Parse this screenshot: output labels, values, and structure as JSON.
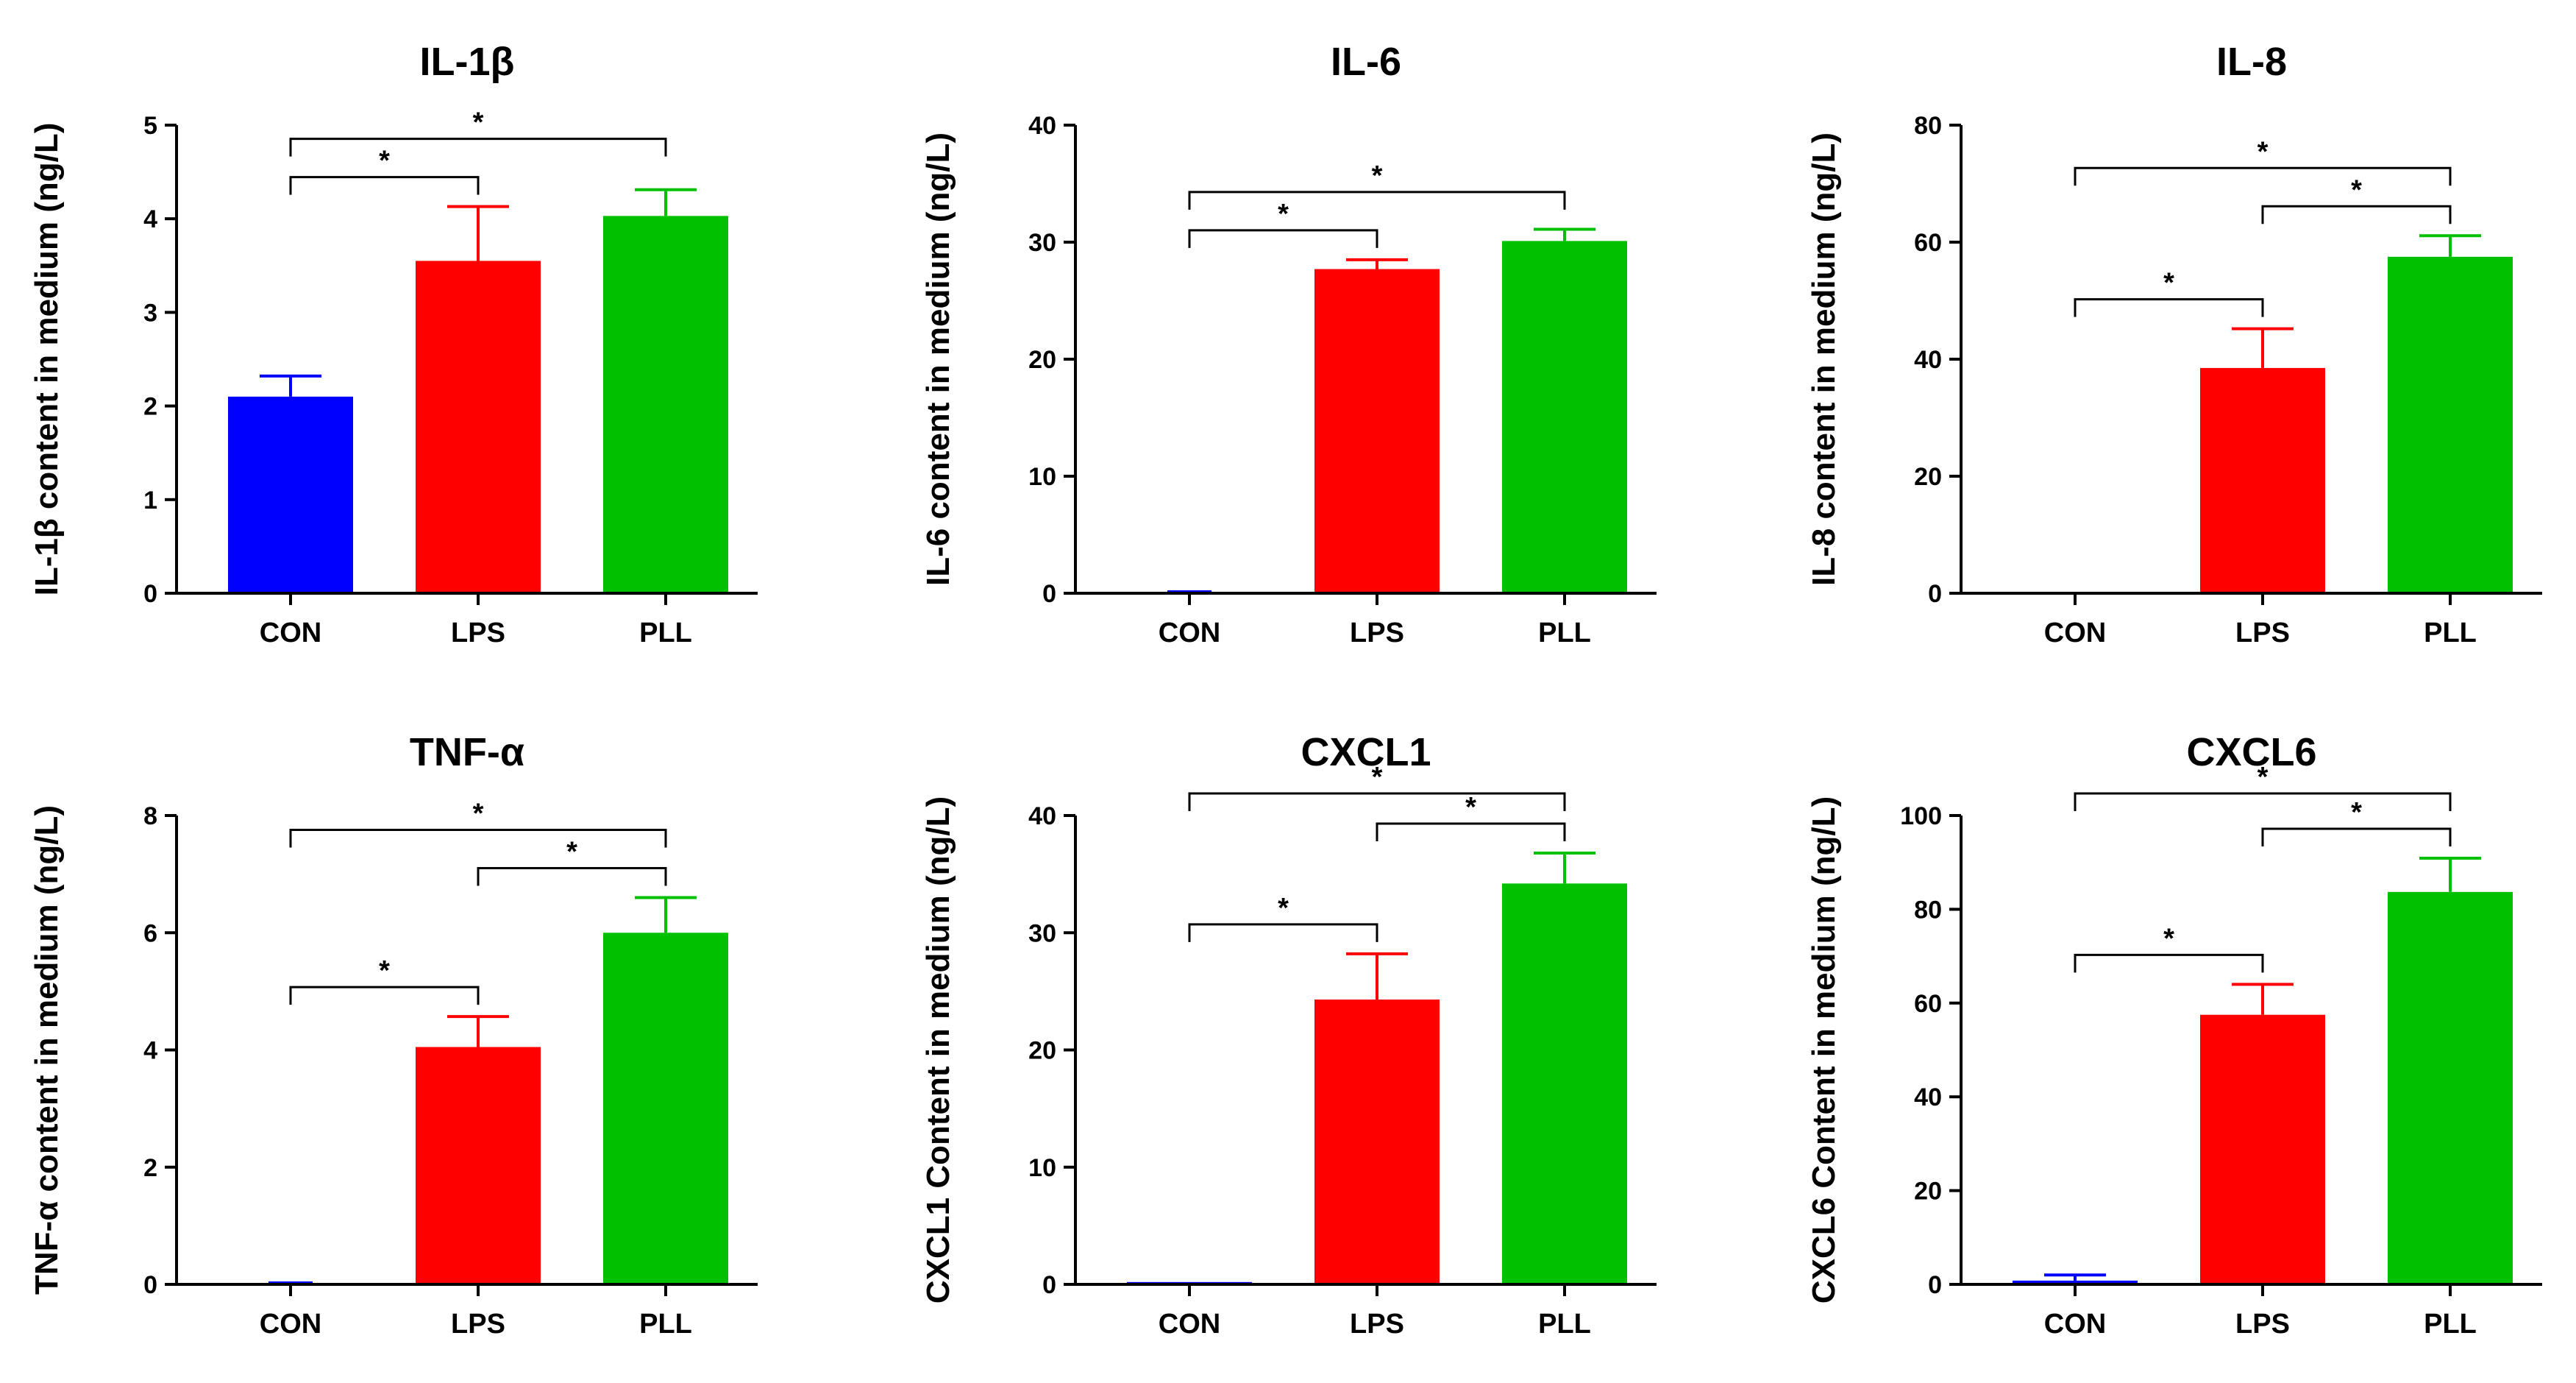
{
  "chart_data": [
    {
      "type": "bar",
      "title": "IL-1β",
      "xlabel": "",
      "ylabel": "IL-1β content in medium (ng/L)",
      "categories": [
        "CON",
        "LPS",
        "PLL"
      ],
      "values": [
        2.1,
        3.55,
        4.03
      ],
      "errors": [
        0.22,
        0.58,
        0.28
      ],
      "ylim": [
        0,
        5
      ],
      "yticks": [
        0,
        1,
        2,
        3,
        4,
        5
      ],
      "colors": [
        "#0000ff",
        "#ff0000",
        "#00c000"
      ],
      "significance": [
        {
          "from": 0,
          "to": 1,
          "label": "*"
        },
        {
          "from": 0,
          "to": 2,
          "label": "*"
        }
      ]
    },
    {
      "type": "bar",
      "title": "IL-6",
      "xlabel": "",
      "ylabel": "IL-6 content in medium (ng/L)",
      "categories": [
        "CON",
        "LPS",
        "PLL"
      ],
      "values": [
        0,
        27.7,
        30.1
      ],
      "errors": [
        0,
        0.8,
        1.0
      ],
      "ylim": [
        0,
        40
      ],
      "yticks": [
        0,
        10,
        20,
        30,
        40
      ],
      "colors": [
        "#0000ff",
        "#ff0000",
        "#00c000"
      ],
      "significance": [
        {
          "from": 0,
          "to": 1,
          "label": "*"
        },
        {
          "from": 0,
          "to": 2,
          "label": "*"
        }
      ]
    },
    {
      "type": "bar",
      "title": "IL-8",
      "xlabel": "",
      "ylabel": "IL-8 content in medium (ng/L)",
      "categories": [
        "CON",
        "LPS",
        "PLL"
      ],
      "values": [
        0.2,
        38.5,
        57.5
      ],
      "errors": [
        0,
        6.7,
        3.6
      ],
      "ylim": [
        0,
        80
      ],
      "yticks": [
        0,
        20,
        40,
        60,
        80
      ],
      "colors": [
        "#0000ff",
        "#ff0000",
        "#00c000"
      ],
      "significance": [
        {
          "from": 0,
          "to": 1,
          "label": "*"
        },
        {
          "from": 1,
          "to": 2,
          "label": "*"
        },
        {
          "from": 0,
          "to": 2,
          "label": "*"
        }
      ]
    },
    {
      "type": "bar",
      "title": "TNF-α",
      "xlabel": "",
      "ylabel": "TNF-α content in medium (ng/L)",
      "categories": [
        "CON",
        "LPS",
        "PLL"
      ],
      "values": [
        0,
        4.05,
        6.0
      ],
      "errors": [
        0,
        0.52,
        0.6
      ],
      "ylim": [
        0,
        8
      ],
      "yticks": [
        0,
        2,
        4,
        6,
        8
      ],
      "colors": [
        "#0000ff",
        "#ff0000",
        "#00c000"
      ],
      "significance": [
        {
          "from": 0,
          "to": 1,
          "label": "*"
        },
        {
          "from": 1,
          "to": 2,
          "label": "*"
        },
        {
          "from": 0,
          "to": 2,
          "label": "*"
        }
      ]
    },
    {
      "type": "bar",
      "title": "CXCL1",
      "xlabel": "",
      "ylabel": "CXCL1 Content in medium (ng/L)",
      "categories": [
        "CON",
        "LPS",
        "PLL"
      ],
      "values": [
        0.2,
        24.3,
        34.2
      ],
      "errors": [
        0,
        3.9,
        2.6
      ],
      "ylim": [
        0,
        40
      ],
      "yticks": [
        0,
        10,
        20,
        30,
        40
      ],
      "colors": [
        "#0000ff",
        "#ff0000",
        "#00c000"
      ],
      "significance": [
        {
          "from": 0,
          "to": 1,
          "label": "*"
        },
        {
          "from": 1,
          "to": 2,
          "label": "*"
        },
        {
          "from": 0,
          "to": 2,
          "label": "*"
        }
      ]
    },
    {
      "type": "bar",
      "title": "CXCL6",
      "xlabel": "",
      "ylabel": "CXCL6 Content in medium (ng/L)",
      "categories": [
        "CON",
        "LPS",
        "PLL"
      ],
      "values": [
        0.8,
        57.5,
        83.7
      ],
      "errors": [
        1.2,
        6.5,
        7.2
      ],
      "ylim": [
        0,
        100
      ],
      "yticks": [
        0,
        20,
        40,
        60,
        80,
        100
      ],
      "colors": [
        "#0000ff",
        "#ff0000",
        "#00c000"
      ],
      "significance": [
        {
          "from": 0,
          "to": 1,
          "label": "*"
        },
        {
          "from": 1,
          "to": 2,
          "label": "*"
        },
        {
          "from": 0,
          "to": 2,
          "label": "*"
        }
      ]
    }
  ]
}
